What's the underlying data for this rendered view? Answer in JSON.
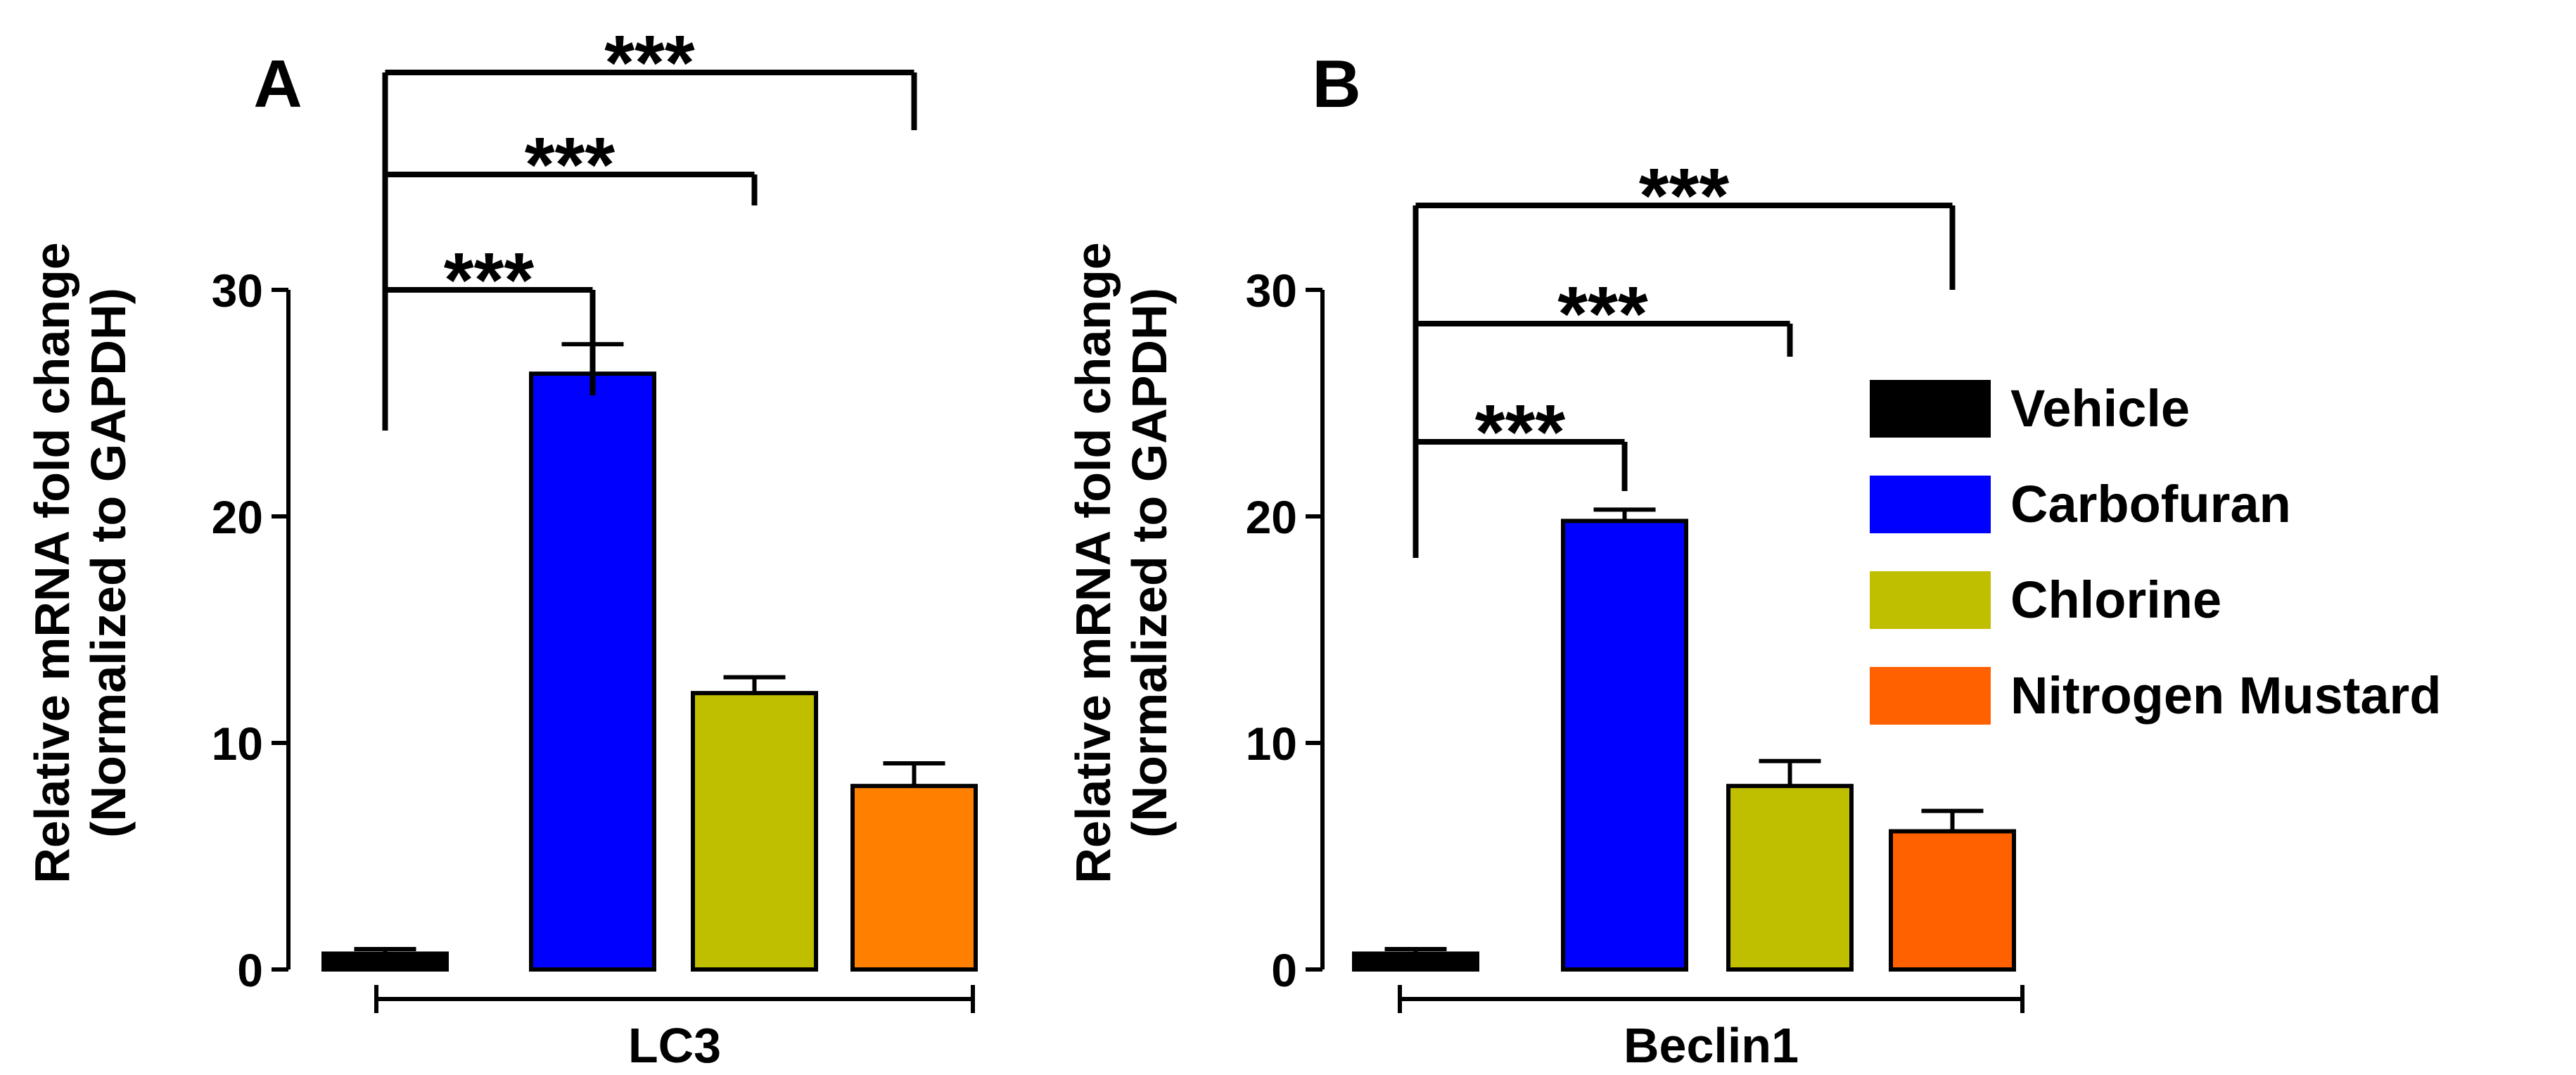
{
  "figure": {
    "background": "#ffffff"
  },
  "chart_data": [
    {
      "type": "bar",
      "panel_label": "A",
      "ylabel_line1": "Relative mRNA fold change",
      "ylabel_line2": "(Normalized to GAPDH)",
      "xlabel": "LC3",
      "ylim": [
        0,
        30
      ],
      "yticks": [
        0,
        10,
        20,
        30
      ],
      "ytick_labels": [
        "0",
        "10",
        "20",
        "30"
      ],
      "categories": [
        "Vehicle",
        "Carbofuran",
        "Chlorine",
        "Nitrogen Mustard"
      ],
      "values": [
        0.7,
        26.3,
        12.2,
        8.1
      ],
      "errors": [
        0.2,
        1.3,
        0.7,
        1.0
      ],
      "colors": [
        "#000000",
        "#0000ff",
        "#bfbf00",
        "#ff8000"
      ],
      "significance": [
        {
          "from": 0,
          "to": 1,
          "label": "***"
        },
        {
          "from": 0,
          "to": 2,
          "label": "***"
        },
        {
          "from": 0,
          "to": 3,
          "label": "***"
        }
      ]
    },
    {
      "type": "bar",
      "panel_label": "B",
      "ylabel_line1": "Relative mRNA fold change",
      "ylabel_line2": "(Normalized to GAPDH)",
      "xlabel": "Beclin1",
      "ylim": [
        0,
        30
      ],
      "yticks": [
        0,
        10,
        20,
        30
      ],
      "ytick_labels": [
        "0",
        "10",
        "20",
        "30"
      ],
      "categories": [
        "Vehicle",
        "Carbofuran",
        "Chlorine",
        "Nitrogen Mustard"
      ],
      "values": [
        0.7,
        19.8,
        8.1,
        6.1
      ],
      "errors": [
        0.2,
        0.5,
        1.1,
        0.9
      ],
      "colors": [
        "#000000",
        "#0000ff",
        "#bfbf00",
        "#ff6000"
      ],
      "significance": [
        {
          "from": 0,
          "to": 1,
          "label": "***"
        },
        {
          "from": 0,
          "to": 2,
          "label": "***"
        },
        {
          "from": 0,
          "to": 3,
          "label": "***"
        }
      ]
    }
  ],
  "legend": {
    "items": [
      {
        "label": "Vehicle",
        "color": "#000000"
      },
      {
        "label": "Carbofuran",
        "color": "#0000ff"
      },
      {
        "label": "Chlorine",
        "color": "#bfbf00"
      },
      {
        "label": "Nitrogen Mustard",
        "color": "#ff6000"
      }
    ]
  }
}
